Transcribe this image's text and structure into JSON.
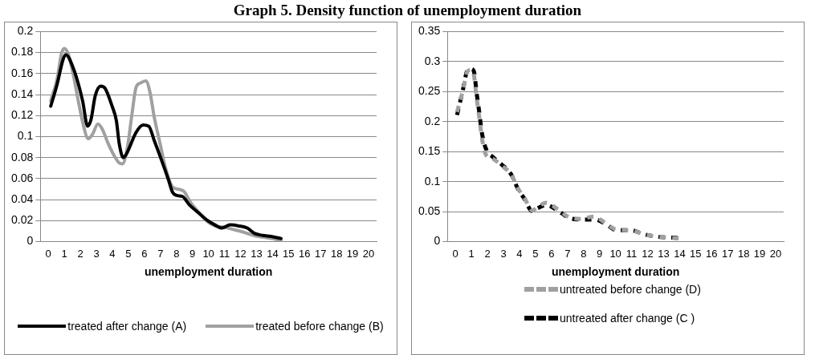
{
  "chart_data": [
    {
      "type": "line",
      "title": "Graph 5. Density function of unemployment duration",
      "xlabel": "unemployment duration",
      "xlim": [
        -0.5,
        20.5
      ],
      "xticks": [
        0,
        1,
        2,
        3,
        4,
        5,
        6,
        7,
        8,
        9,
        10,
        11,
        12,
        13,
        14,
        15,
        16,
        17,
        18,
        19,
        20
      ],
      "ylim": [
        0,
        0.2
      ],
      "yticks": [
        0,
        0.02,
        0.04,
        0.06,
        0.08,
        0.1,
        0.12,
        0.14,
        0.16,
        0.18,
        0.2
      ],
      "grid": "y",
      "legend": "bottom",
      "marker": "none",
      "line_style": "solid",
      "series": [
        {
          "name": "treated after change (A)",
          "color": "#000000",
          "x": [
            0.15,
            0.55,
            0.91,
            1.08,
            1.61,
            2.14,
            2.45,
            2.66,
            2.93,
            3.28,
            3.54,
            3.98,
            4.25,
            4.42,
            4.68,
            4.86,
            5.48,
            5.91,
            6.27,
            6.62,
            7.06,
            7.5,
            7.76,
            8.02,
            8.38,
            8.81,
            9.34,
            9.87,
            10.4,
            10.84,
            11.36,
            11.89,
            12.42,
            12.86,
            13.38,
            13.91,
            14.53
          ],
          "values": [
            0.129,
            0.15,
            0.173,
            0.178,
            0.163,
            0.134,
            0.11,
            0.116,
            0.139,
            0.148,
            0.146,
            0.129,
            0.115,
            0.094,
            0.08,
            0.083,
            0.104,
            0.111,
            0.11,
            0.096,
            0.078,
            0.059,
            0.047,
            0.044,
            0.043,
            0.035,
            0.028,
            0.021,
            0.016,
            0.013,
            0.016,
            0.015,
            0.013,
            0.008,
            0.006,
            0.005,
            0.003
          ]
        },
        {
          "name": "treated before change (B)",
          "color": "#a0a0a0",
          "x": [
            0.15,
            0.55,
            0.82,
            0.99,
            1.26,
            1.61,
            1.87,
            2.17,
            2.49,
            2.75,
            3.1,
            3.37,
            3.72,
            4.07,
            4.42,
            4.63,
            4.95,
            5.21,
            5.48,
            5.74,
            6.09,
            6.35,
            6.62,
            6.97,
            7.32,
            7.76,
            8.11,
            8.46,
            8.9,
            9.34,
            9.87,
            10.4,
            10.92,
            11.45,
            11.98,
            12.5,
            12.94,
            13.56,
            14.53
          ],
          "values": [
            0.134,
            0.155,
            0.179,
            0.184,
            0.178,
            0.155,
            0.134,
            0.112,
            0.098,
            0.102,
            0.112,
            0.107,
            0.094,
            0.083,
            0.075,
            0.074,
            0.091,
            0.12,
            0.147,
            0.151,
            0.153,
            0.142,
            0.118,
            0.094,
            0.07,
            0.052,
            0.05,
            0.048,
            0.037,
            0.029,
            0.02,
            0.015,
            0.014,
            0.012,
            0.01,
            0.0075,
            0.0054,
            0.004,
            0.0013
          ]
        }
      ]
    },
    {
      "type": "line",
      "xlabel": "unemployment duration",
      "xlim": [
        -0.5,
        20.5
      ],
      "xticks": [
        0,
        1,
        2,
        3,
        4,
        5,
        6,
        7,
        8,
        9,
        10,
        11,
        12,
        13,
        14,
        15,
        16,
        17,
        18,
        19,
        20
      ],
      "ylim": [
        0,
        0.35
      ],
      "yticks": [
        0,
        0.05,
        0.1,
        0.15,
        0.2,
        0.25,
        0.3,
        0.35
      ],
      "grid": "y",
      "legend": "bottom",
      "marker": "none",
      "line_style": "dashed",
      "series": [
        {
          "name": "untreated before change (D)",
          "color": "#a0a0a0",
          "x": [
            0.1,
            0.45,
            0.76,
            0.97,
            1.15,
            1.32,
            1.5,
            1.64,
            1.9,
            2.34,
            2.87,
            3.48,
            3.92,
            4.27,
            4.8,
            5.15,
            5.68,
            6.38,
            7.08,
            7.78,
            8.66,
            9.36,
            10.06,
            10.94,
            11.82,
            12.69,
            13.22,
            14.1
          ],
          "values": [
            0.216,
            0.25,
            0.284,
            0.286,
            0.278,
            0.24,
            0.205,
            0.175,
            0.145,
            0.138,
            0.127,
            0.112,
            0.088,
            0.075,
            0.052,
            0.058,
            0.065,
            0.054,
            0.041,
            0.038,
            0.042,
            0.031,
            0.02,
            0.019,
            0.012,
            0.008,
            0.007,
            0.005
          ]
        },
        {
          "name": "untreated after change (C )",
          "color": "#000000",
          "x": [
            0.1,
            0.45,
            0.76,
            0.97,
            1.15,
            1.32,
            1.5,
            1.64,
            1.9,
            2.34,
            2.87,
            3.48,
            3.92,
            4.27,
            4.8,
            5.15,
            5.68,
            6.38,
            7.08,
            7.78,
            8.66,
            9.36,
            10.06,
            10.94,
            11.82,
            12.69,
            13.22,
            14.1
          ],
          "values": [
            0.211,
            0.251,
            0.286,
            0.288,
            0.284,
            0.248,
            0.213,
            0.183,
            0.155,
            0.141,
            0.129,
            0.112,
            0.087,
            0.073,
            0.051,
            0.056,
            0.061,
            0.052,
            0.04,
            0.037,
            0.037,
            0.03,
            0.019,
            0.019,
            0.012,
            0.008,
            0.007,
            0.006
          ]
        }
      ]
    }
  ]
}
